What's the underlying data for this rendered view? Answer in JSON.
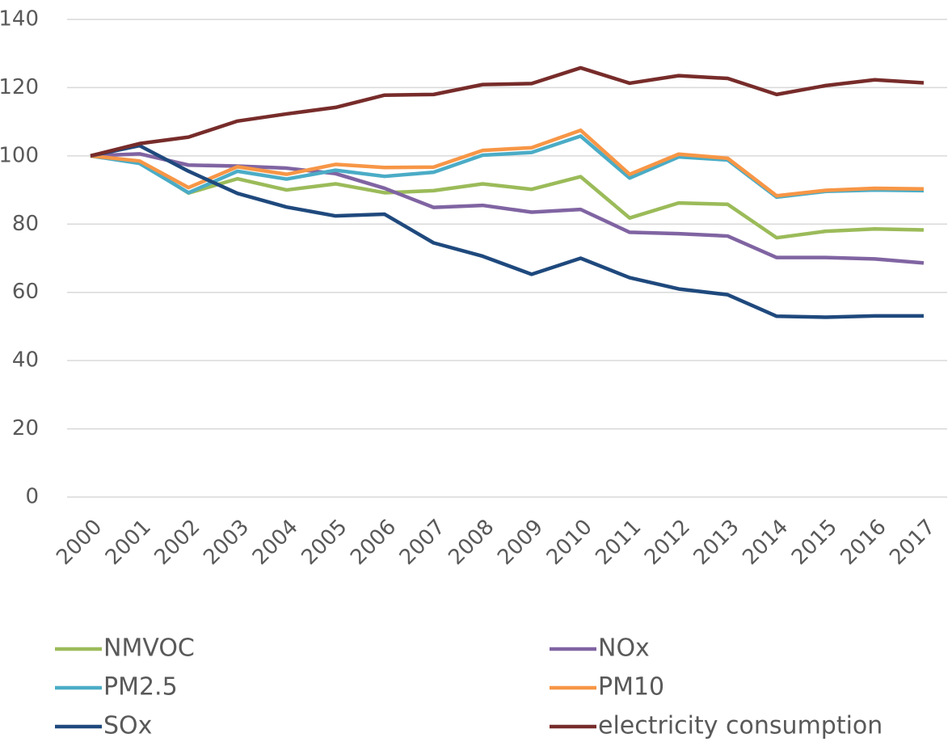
{
  "chart_data": {
    "type": "line",
    "categories": [
      "2000",
      "2001",
      "2002",
      "2003",
      "2004",
      "2005",
      "2006",
      "2007",
      "2008",
      "2009",
      "2010",
      "2011",
      "2012",
      "2013",
      "2014",
      "2015",
      "2016",
      "2017"
    ],
    "series": [
      {
        "name": "NMVOC",
        "color": "#9bbb59",
        "values": [
          100,
          98.1,
          89.1,
          93.3,
          90,
          91.8,
          89.2,
          89.8,
          91.8,
          90.2,
          93.9,
          81.8,
          86.2,
          85.8,
          76,
          77.9,
          78.6,
          78.3
        ]
      },
      {
        "name": "NOx",
        "color": "#8064a2",
        "values": [
          100,
          100.6,
          97.3,
          97,
          96.4,
          94.8,
          90.5,
          84.9,
          85.5,
          83.5,
          84.3,
          77.6,
          77.2,
          76.5,
          70.2,
          70.2,
          69.8,
          68.6
        ]
      },
      {
        "name": "PM2.5",
        "color": "#4bacc6",
        "values": [
          100,
          97.8,
          89.2,
          95.5,
          93.2,
          95.8,
          94,
          95.2,
          100.2,
          101,
          105.8,
          93.5,
          99.7,
          98.8,
          87.9,
          89.6,
          90,
          89.8
        ]
      },
      {
        "name": "PM10",
        "color": "#f79646",
        "values": [
          100,
          98.5,
          90.7,
          96.8,
          94.6,
          97.5,
          96.6,
          96.7,
          101.6,
          102.4,
          107.5,
          94.6,
          100.5,
          99.3,
          88.3,
          89.9,
          90.5,
          90.3
        ]
      },
      {
        "name": "SOx",
        "color": "#1f497d",
        "values": [
          100,
          103,
          95.5,
          89,
          85,
          82.4,
          82.9,
          74.5,
          70.6,
          65.3,
          70,
          64.3,
          61,
          59.3,
          53,
          52.7,
          53.1,
          53.1
        ]
      },
      {
        "name": "electricity consumption",
        "color": "#772c2a",
        "values": [
          100,
          103.6,
          105.5,
          110.2,
          112.3,
          114.2,
          117.8,
          118,
          120.9,
          121.2,
          125.8,
          121.3,
          123.5,
          122.7,
          118,
          120.6,
          122.3,
          121.4
        ]
      }
    ],
    "ylim": [
      0,
      140
    ],
    "yticks": [
      0,
      20,
      40,
      60,
      80,
      100,
      120,
      140
    ],
    "grid": true,
    "legend": "bottom"
  }
}
